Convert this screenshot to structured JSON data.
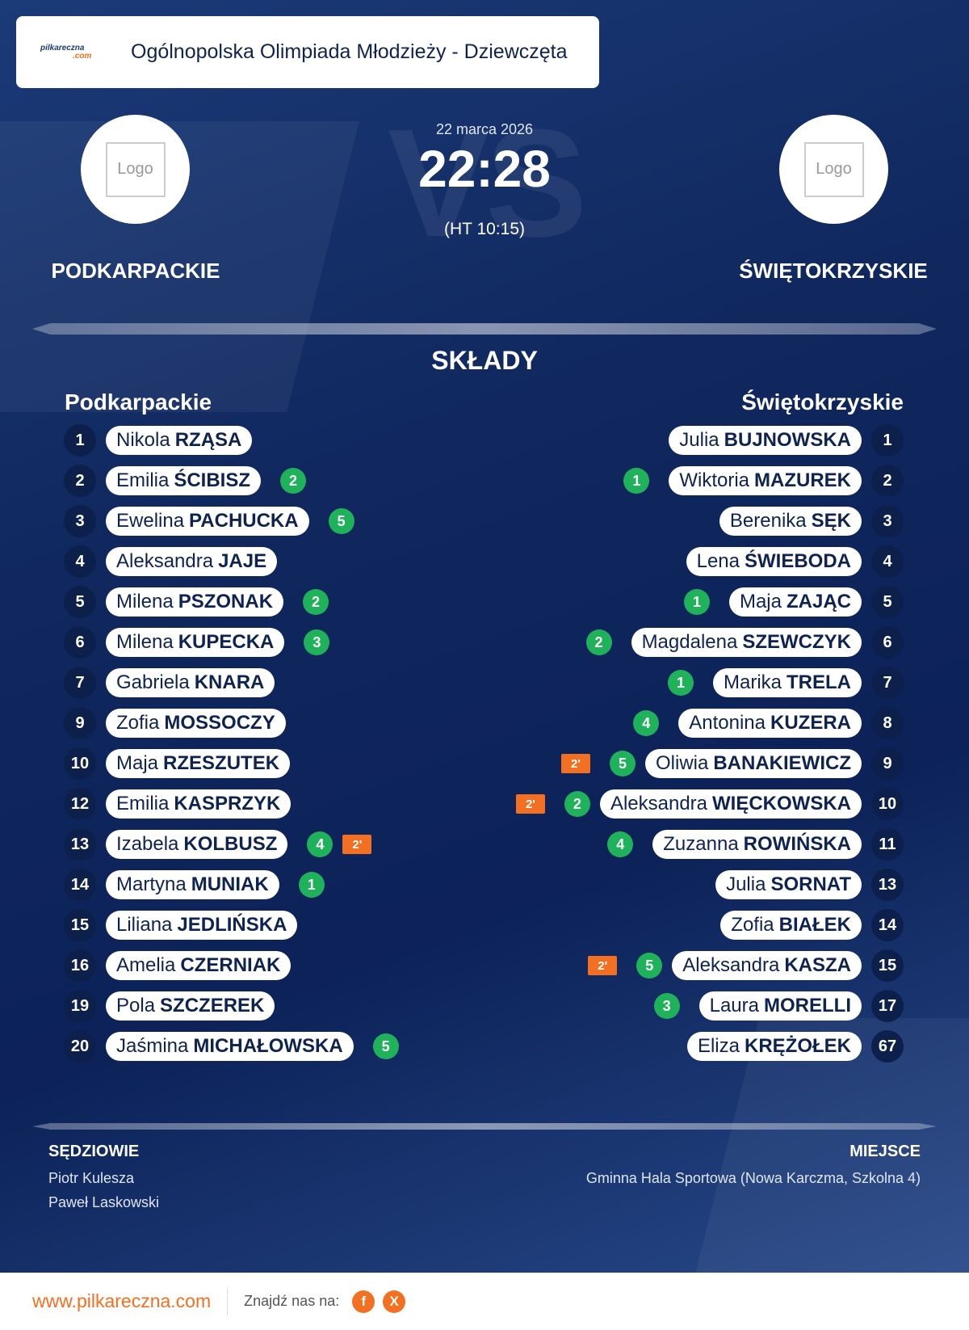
{
  "header": {
    "logo_text": "pilkareczna",
    "logo_suffix": ".com",
    "title": "Ogólnopolska Olimpiada Młodzieży - Dziewczęta"
  },
  "match": {
    "watermark": "VS",
    "date": "22 marca 2026",
    "score": "22:28",
    "halftime": "(HT 10:15)",
    "home": {
      "name": "PODKARPACKIE",
      "logo": "Logo"
    },
    "away": {
      "name": "ŚWIĘTOKRZYSKIE",
      "logo": "Logo"
    }
  },
  "lineups": {
    "title": "SKŁADY",
    "home": {
      "team": "Podkarpackie",
      "players": [
        {
          "number": 1,
          "first": "Nikola",
          "last": "RZĄSA"
        },
        {
          "number": 2,
          "first": "Emilia",
          "last": "ŚCIBISZ",
          "goals": 2
        },
        {
          "number": 3,
          "first": "Ewelina",
          "last": "PACHUCKA",
          "goals": 5
        },
        {
          "number": 4,
          "first": "Aleksandra",
          "last": "JAJE"
        },
        {
          "number": 5,
          "first": "Milena",
          "last": "PSZONAK",
          "goals": 2
        },
        {
          "number": 6,
          "first": "Milena",
          "last": "KUPECKA",
          "goals": 3
        },
        {
          "number": 7,
          "first": "Gabriela",
          "last": "KNARA"
        },
        {
          "number": 9,
          "first": "Zofia",
          "last": "MOSSOCZY"
        },
        {
          "number": 10,
          "first": "Maja",
          "last": "RZESZUTEK"
        },
        {
          "number": 12,
          "first": "Emilia",
          "last": "KASPRZYK"
        },
        {
          "number": 13,
          "first": "Izabela",
          "last": "KOLBUSZ",
          "goals": 4,
          "penalty": "2'"
        },
        {
          "number": 14,
          "first": "Martyna",
          "last": "MUNIAK",
          "goals": 1
        },
        {
          "number": 15,
          "first": "Liliana",
          "last": "JEDLIŃSKA"
        },
        {
          "number": 16,
          "first": "Amelia",
          "last": "CZERNIAK"
        },
        {
          "number": 19,
          "first": "Pola",
          "last": "SZCZEREK"
        },
        {
          "number": 20,
          "first": "Jaśmina",
          "last": "MICHAŁOWSKA",
          "goals": 5
        }
      ]
    },
    "away": {
      "team": "Świętokrzyskie",
      "players": [
        {
          "number": 1,
          "first": "Julia",
          "last": "BUJNOWSKA"
        },
        {
          "number": 2,
          "first": "Wiktoria",
          "last": "MAZUREK",
          "goals": 1
        },
        {
          "number": 3,
          "first": "Berenika",
          "last": "SĘK"
        },
        {
          "number": 4,
          "first": "Lena",
          "last": "ŚWIEBODA"
        },
        {
          "number": 5,
          "first": "Maja",
          "last": "ZAJĄC",
          "goals": 1
        },
        {
          "number": 6,
          "first": "Magdalena",
          "last": "SZEWCZYK",
          "goals": 2
        },
        {
          "number": 7,
          "first": "Marika",
          "last": "TRELA",
          "goals": 1
        },
        {
          "number": 8,
          "first": "Antonina",
          "last": "KUZERA",
          "goals": 4
        },
        {
          "number": 9,
          "first": "Oliwia",
          "last": "BANAKIEWICZ",
          "goals": 5,
          "penalty": "2'"
        },
        {
          "number": 10,
          "first": "Aleksandra",
          "last": "WIĘCKOWSKA",
          "goals": 2,
          "penalty": "2'"
        },
        {
          "number": 11,
          "first": "Zuzanna",
          "last": "ROWIŃSKA",
          "goals": 4
        },
        {
          "number": 13,
          "first": "Julia",
          "last": "SORNAT"
        },
        {
          "number": 14,
          "first": "Zofia",
          "last": "BIAŁEK"
        },
        {
          "number": 15,
          "first": "Aleksandra",
          "last": "KASZA",
          "goals": 5,
          "penalty": "2'"
        },
        {
          "number": 17,
          "first": "Laura",
          "last": "MORELLI",
          "goals": 3
        },
        {
          "number": 67,
          "first": "Eliza",
          "last": "KRĘŻOŁEK"
        }
      ]
    }
  },
  "officials": {
    "label": "SĘDZIOWIE",
    "names": [
      "Piotr Kulesza",
      "Paweł Laskowski"
    ]
  },
  "venue": {
    "label": "MIEJSCE",
    "text": "Gminna Hala Sportowa (Nowa Karczma, Szkolna 4)"
  },
  "footer": {
    "url": "www.pilkareczna.com",
    "find_us": "Znajdź nas na:",
    "social": [
      "f",
      "X"
    ]
  }
}
